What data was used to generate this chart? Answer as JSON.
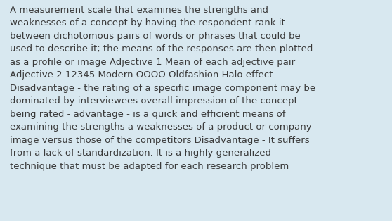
{
  "text": "A measurement scale that examines the strengths and\nweaknesses of a concept by having the respondent rank it\nbetween dichotomous pairs of words or phrases that could be\nused to describe it; the means of the responses are then plotted\nas a profile or image Adjective 1 Mean of each adjective pair\nAdjective 2 12345 Modern OOOO Oldfashion Halo effect -\nDisadvantage - the rating of a specific image component may be\ndominated by interviewees overall impression of the concept\nbeing rated - advantage - is a quick and efficient means of\nexamining the strengths a weaknesses of a product or company\nimage versus those of the competitors Disadvantage - It suffers\nfrom a lack of standardization. It is a highly generalized\ntechnique that must be adapted for each research problem",
  "bg_color": "#d8e8f0",
  "text_color": "#3a3a3a",
  "font_size": 9.5,
  "fig_width": 5.58,
  "fig_height": 3.14,
  "dpi": 100
}
